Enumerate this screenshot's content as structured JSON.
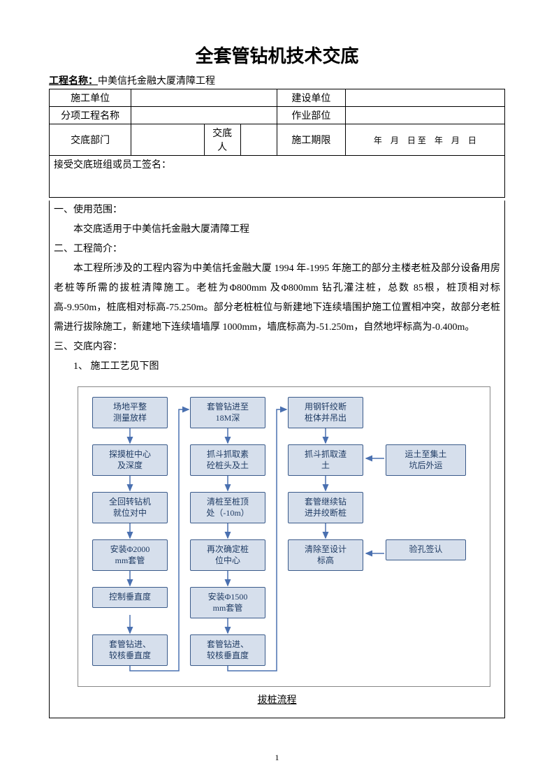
{
  "title": "全套管钻机技术交底",
  "project_label": "工程名称：",
  "project_name": "中美信托金融大厦清障工程",
  "header_table": {
    "r1c1": "施工单位",
    "r1c3": "建设单位",
    "r2c1": "分项工程名称",
    "r2c3": "作业部位",
    "r3c1": "交底部门",
    "r3c2_label": "交底人",
    "r3c3": "施工期限",
    "r3c4": "年　月　日 至　年　月　日",
    "r4": "接受交底班组或员工签名："
  },
  "body": {
    "s1_title": "一、使用范围：",
    "s1_p1": "本交底适用于中美信托金融大厦清障工程",
    "s2_title": "二、工程简介：",
    "s2_p1": "本工程所涉及的工程内容为中美信托金融大厦 1994 年-1995 年施工的部分主楼老桩及部分设备用房老桩等所需的拔桩清障施工。老桩为Φ800mm 及Φ800mm 钻孔灌注桩，总数 85根，桩顶相对标高-9.950m，桩底相对标高-75.250m。部分老桩桩位与新建地下连续墙围护施工位置相冲突，故部分老桩需进行拔除施工，新建地下连续墙墙厚 1000mm，墙底标高为-51.250m，自然地坪标高为-0.400m。",
    "s3_title": "三、交底内容：",
    "s3_item1": "1、 施工工艺见下图"
  },
  "flowchart": {
    "caption": "拔桩流程",
    "node_fill": "#d6dfec",
    "node_border": "#3a5a8a",
    "arrow_color": "#4a70b0",
    "row_gap": 68,
    "node_height_1line": 28,
    "node_height_2line": 42,
    "col1": [
      "场地平整\n测量放样",
      "探摸桩中心\n及深度",
      "全回转钻机\n就位对中",
      "安装Φ2000\nmm套管",
      "控制垂直度",
      "套管钻进、\n较核垂直度"
    ],
    "col2": [
      "套管钻进至\n18M深",
      "抓斗抓取素\n砼桩头及土",
      "清桩至桩顶\n处（-10m）",
      "再次确定桩\n位中心",
      "安装Φ1500\nmm套管",
      "套管钻进、\n较核垂直度"
    ],
    "col3": [
      "用钢钎绞断\n桩体并吊出",
      "抓斗抓取渣\n土",
      "套管继续钻\n进并绞断桩",
      "清除至设计\n标高"
    ],
    "col4_top": "运土至集土\n坑后外运",
    "col4_bottom": "验孔签认"
  },
  "page_number": "1"
}
